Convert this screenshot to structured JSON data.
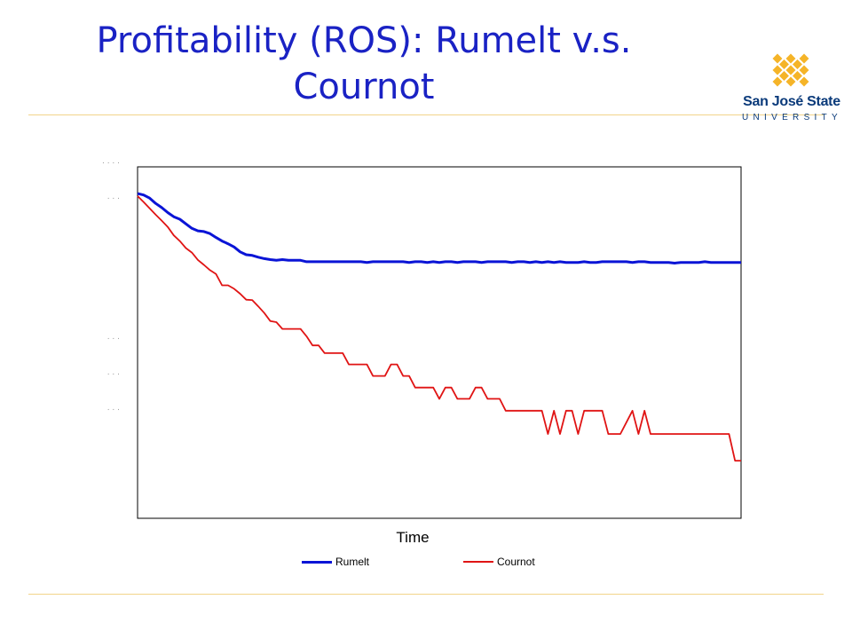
{
  "slide": {
    "title_line1": "Profitability (ROS): Rumelt v.s.",
    "title_line2": "Cournot"
  },
  "logo": {
    "name": "San José State",
    "subtitle": "UNIVERSITY",
    "brand_color": "#0a3a7a",
    "mark_color": "#f5b428"
  },
  "colors": {
    "title": "#1a22c4",
    "rule": "#f2d48a",
    "rumelt": "#0a14d6",
    "cournot": "#e01414"
  },
  "chart_data": {
    "type": "line",
    "title": "",
    "xlabel": "Time",
    "ylabel": "",
    "xlim": [
      0,
      100
    ],
    "ylim": [
      0,
      100
    ],
    "ytick_labels": [
      ". . . .",
      ". . .",
      ". . .",
      ". . .",
      ". . ."
    ],
    "grid": false,
    "legend": "bottom",
    "series": [
      {
        "name": "Rumelt",
        "x": [
          0,
          1,
          2,
          3,
          4,
          5,
          6,
          7,
          8,
          9,
          10,
          11,
          12,
          13,
          14,
          15,
          16,
          17,
          18,
          19,
          20,
          21,
          22,
          23,
          24,
          25,
          26,
          27,
          28,
          29,
          30,
          31,
          32,
          33,
          34,
          35,
          36,
          37,
          38,
          39,
          40,
          41,
          42,
          43,
          44,
          45,
          46,
          47,
          48,
          49,
          50,
          51,
          52,
          53,
          54,
          55,
          56,
          57,
          58,
          59,
          60,
          61,
          62,
          63,
          64,
          65,
          66,
          67,
          68,
          69,
          70,
          71,
          72,
          73,
          74,
          75,
          76,
          77,
          78,
          79,
          80,
          81,
          82,
          83,
          84,
          85,
          86,
          87,
          88,
          89,
          90,
          91,
          92,
          93,
          94,
          95,
          96,
          97,
          98,
          99,
          100
        ],
        "values": [
          92.4,
          92.0,
          91.1,
          89.6,
          88.4,
          87.0,
          85.8,
          85.1,
          83.8,
          82.5,
          81.8,
          81.6,
          81.0,
          79.9,
          78.9,
          78.1,
          77.2,
          75.8,
          75.0,
          74.8,
          74.3,
          73.9,
          73.6,
          73.4,
          73.6,
          73.4,
          73.4,
          73.4,
          73.0,
          73.0,
          73.0,
          73.0,
          73.0,
          73.0,
          73.0,
          73.0,
          73.0,
          73.0,
          72.8,
          73.0,
          73.0,
          73.0,
          73.0,
          73.0,
          73.0,
          72.8,
          73.0,
          73.0,
          72.8,
          73.0,
          72.8,
          73.0,
          73.0,
          72.8,
          73.0,
          73.0,
          73.0,
          72.8,
          73.0,
          73.0,
          73.0,
          73.0,
          72.8,
          73.0,
          73.0,
          72.8,
          73.0,
          72.8,
          73.0,
          72.8,
          73.0,
          72.8,
          72.8,
          72.8,
          73.0,
          72.8,
          72.8,
          73.0,
          73.0,
          73.0,
          73.0,
          73.0,
          72.8,
          73.0,
          73.0,
          72.8,
          72.8,
          72.8,
          72.8,
          72.6,
          72.8,
          72.8,
          72.8,
          72.8,
          73.0,
          72.8,
          72.8,
          72.8,
          72.8,
          72.8,
          72.8
        ]
      },
      {
        "name": "Cournot",
        "x": [
          0,
          1,
          2,
          3,
          4,
          5,
          6,
          7,
          8,
          9,
          10,
          11,
          12,
          13,
          14,
          15,
          16,
          17,
          18,
          19,
          20,
          21,
          22,
          23,
          24,
          25,
          26,
          27,
          28,
          29,
          30,
          31,
          32,
          33,
          34,
          35,
          36,
          37,
          38,
          39,
          40,
          41,
          42,
          43,
          44,
          45,
          46,
          47,
          48,
          49,
          50,
          51,
          52,
          53,
          54,
          55,
          56,
          57,
          58,
          59,
          60,
          61,
          62,
          63,
          64,
          65,
          66,
          67,
          68,
          69,
          70,
          71,
          72,
          73,
          74,
          75,
          76,
          77,
          78,
          79,
          80,
          81,
          82,
          83,
          84,
          85,
          86,
          87,
          88,
          89,
          90,
          91,
          92,
          93,
          94,
          95,
          96,
          97,
          98,
          99,
          100
        ],
        "values": [
          91.7,
          90.0,
          88.2,
          86.4,
          84.7,
          82.9,
          80.5,
          78.9,
          76.9,
          75.6,
          73.5,
          72.1,
          70.6,
          69.5,
          66.3,
          66.3,
          65.3,
          63.9,
          62.2,
          62.1,
          60.3,
          58.4,
          56.1,
          55.8,
          53.9,
          53.9,
          53.9,
          53.9,
          51.8,
          49.2,
          49.2,
          47.0,
          47.0,
          47.0,
          47.0,
          43.8,
          43.8,
          43.8,
          43.8,
          40.5,
          40.5,
          40.5,
          43.8,
          43.8,
          40.5,
          40.5,
          37.2,
          37.2,
          37.2,
          37.2,
          34.0,
          37.2,
          37.2,
          34.0,
          34.0,
          34.0,
          37.2,
          37.2,
          34.0,
          34.0,
          34.0,
          30.6,
          30.6,
          30.6,
          30.6,
          30.6,
          30.6,
          30.6,
          24.0,
          30.6,
          24.0,
          30.6,
          30.6,
          24.0,
          30.6,
          30.6,
          30.6,
          30.6,
          24.0,
          24.0,
          24.0,
          27.3,
          30.6,
          24.0,
          30.6,
          24.0,
          24.0,
          24.0,
          24.0,
          24.0,
          24.0,
          24.0,
          24.0,
          24.0,
          24.0,
          24.0,
          24.0,
          24.0,
          24.0,
          16.4,
          16.4
        ]
      }
    ]
  }
}
